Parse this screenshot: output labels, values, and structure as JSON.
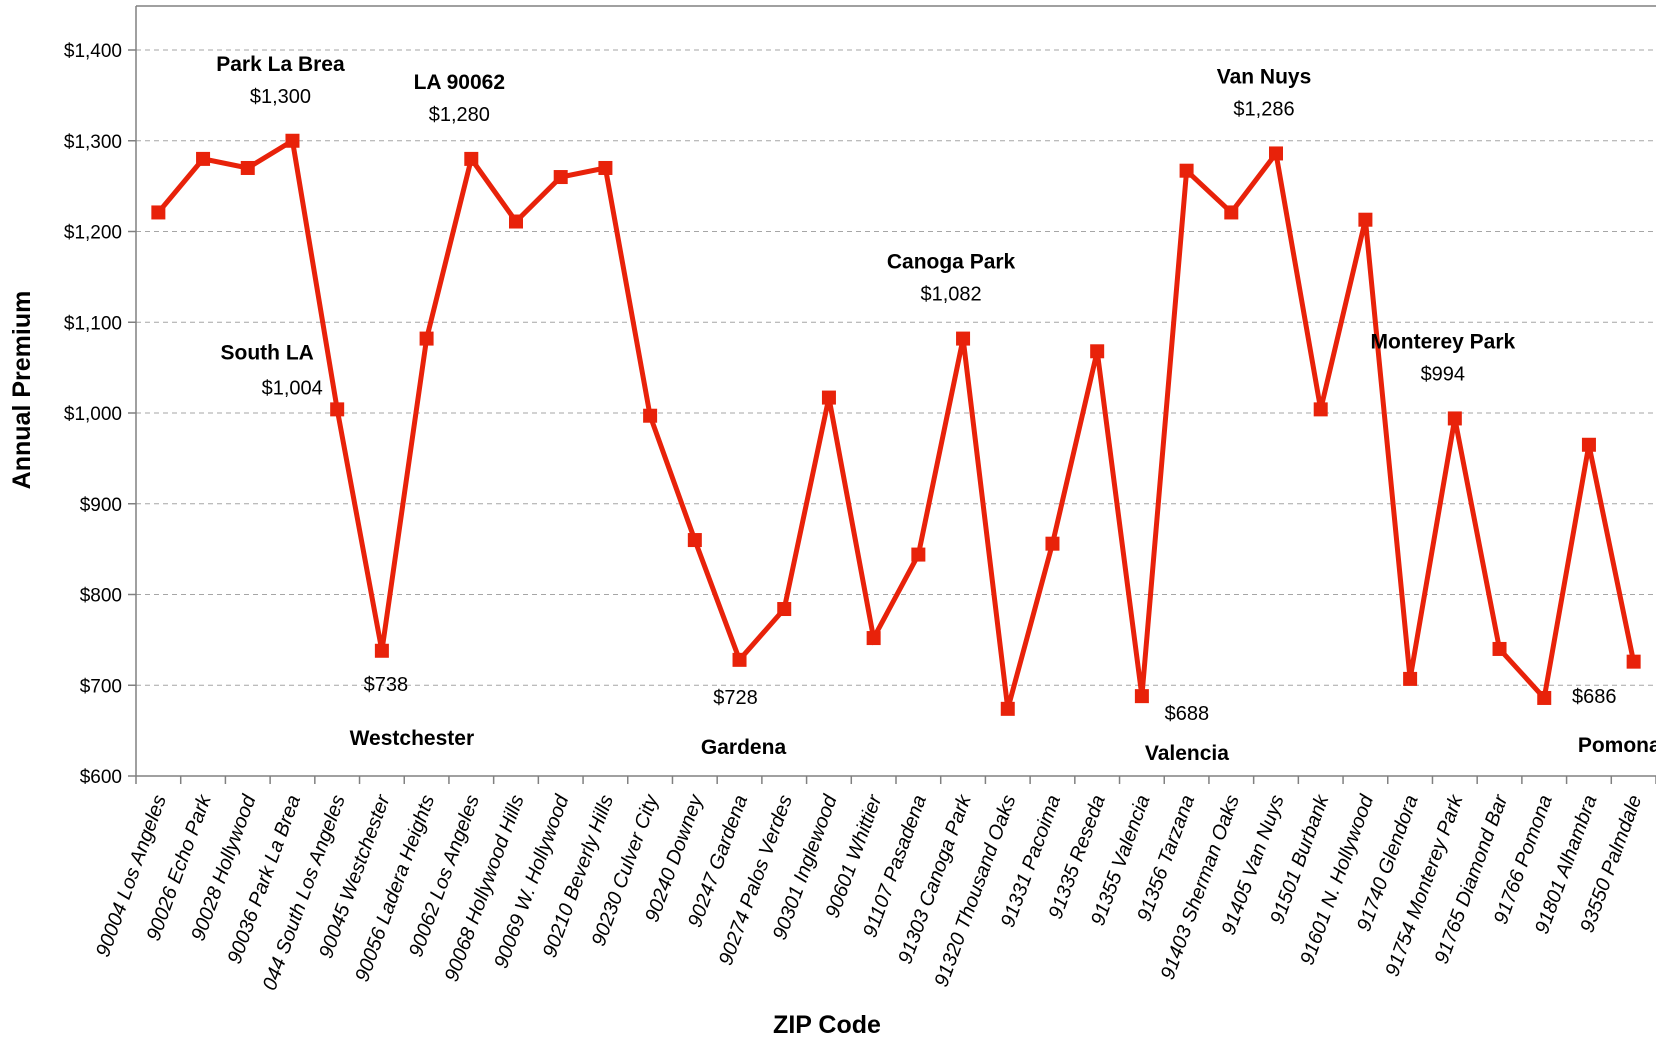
{
  "chart_data": {
    "type": "line",
    "xlabel": "ZIP Code",
    "ylabel": "Annual Premium",
    "ylim": [
      600,
      1400
    ],
    "y_tick_step": 100,
    "y_tick_labels": [
      "$600",
      "$700",
      "$800",
      "$900",
      "$1,000",
      "$1,100",
      "$1,200",
      "$1,300",
      "$1,400"
    ],
    "grid": true,
    "line_color": "#e8220a",
    "categories": [
      "90004 Los Angeles",
      "90026 Echo Park",
      "90028 Hollywood",
      "90036 Park La Brea",
      "044 South Los Angeles",
      "90045 Westchester",
      "90056 Ladera Heights",
      "90062 Los Angeles",
      "90068 Hollywood Hills",
      "90069 W. Hollywood",
      "90210 Beverly Hills",
      "90230 Culver City",
      "90240 Downey",
      "90247 Gardena",
      "90274 Palos Verdes",
      "90301 Inglewood",
      "90601 Whittier",
      "91107 Pasadena",
      "91303 Canoga Park",
      "91320 Thousand Oaks",
      "91331 Pacoima",
      "91335 Reseda",
      "91355 Valencia",
      "91356 Tarzana",
      "91403 Sherman Oaks",
      "91405 Van Nuys",
      "91501 Burbank",
      "91601 N. Hollywood",
      "91740 Glendora",
      "91754 Monterey Park",
      "91765 Diamond Bar",
      "91766 Pomona",
      "91801 Alhambra",
      "93550 Palmdale"
    ],
    "series": [
      {
        "values": [
          1221,
          1280,
          1270,
          1300,
          1004,
          738,
          1082,
          1280,
          1211,
          1260,
          1270,
          997,
          860,
          728,
          784,
          1017,
          752,
          844,
          1082,
          674,
          856,
          1068,
          688,
          1267,
          1221,
          1286,
          1004,
          1213,
          707,
          994,
          740,
          686,
          965,
          726
        ]
      }
    ],
    "annotations": [
      {
        "index": 3,
        "name": "Park La Brea",
        "value": "$1,300",
        "position": "above"
      },
      {
        "index": 4,
        "name": "South LA",
        "value": "$1,004",
        "position": "above-left"
      },
      {
        "index": 5,
        "name": "Westchester",
        "value": "$738",
        "position": "below"
      },
      {
        "index": 7,
        "name": "LA 90062",
        "value": "$1,280",
        "position": "above"
      },
      {
        "index": 13,
        "name": "Gardena",
        "value": "$728",
        "position": "below"
      },
      {
        "index": 18,
        "name": "Canoga Park",
        "value": "$1,082",
        "position": "above"
      },
      {
        "index": 22,
        "name": "Valencia",
        "value": "$688",
        "position": "below"
      },
      {
        "index": 25,
        "name": "Van Nuys",
        "value": "$1,286",
        "position": "above"
      },
      {
        "index": 29,
        "name": "Monterey Park",
        "value": "$994",
        "position": "above"
      },
      {
        "index": 31,
        "name": "Pomona",
        "value": "$686",
        "position": "below-right"
      }
    ]
  }
}
